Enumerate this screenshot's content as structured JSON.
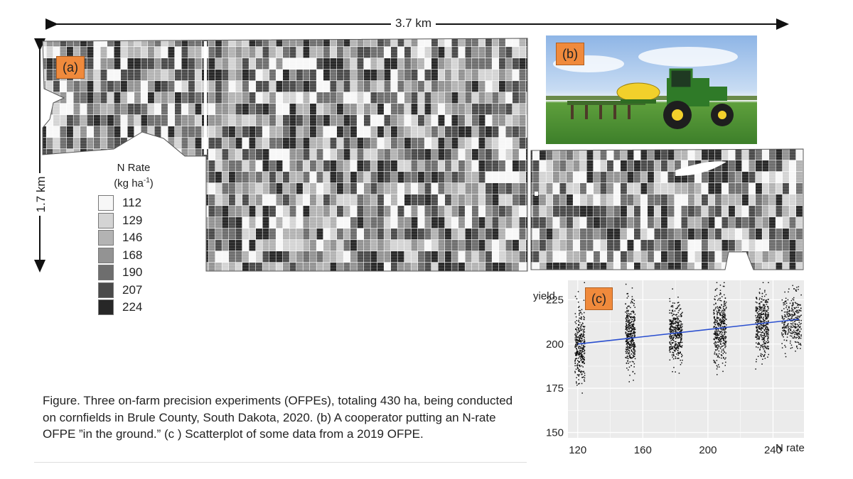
{
  "dimensions": {
    "width_label": "3.7 km",
    "height_label": "1.7 km"
  },
  "panels": {
    "a": "(a)",
    "b": "(b)",
    "c": "(c)"
  },
  "legend": {
    "title_line1": "N Rate",
    "title_line2_base": "(kg ha",
    "title_line2_sup": "-1",
    "title_line2_end": ")",
    "items": [
      {
        "value": "112",
        "color": "#f7f7f7"
      },
      {
        "value": "129",
        "color": "#d4d4d4"
      },
      {
        "value": "146",
        "color": "#b3b3b3"
      },
      {
        "value": "168",
        "color": "#939393"
      },
      {
        "value": "190",
        "color": "#6e6e6e"
      },
      {
        "value": "207",
        "color": "#4a4a4a"
      },
      {
        "value": "224",
        "color": "#272727"
      }
    ]
  },
  "caption": "Figure.  Three on-farm precision experiments (OFPEs), totaling 430 ha, being conducted on cornfields in Brule County, South Dakota, 2020. (b) A cooperator putting an N-rate OFPE ”in the ground.”  (c ) Scatterplot of some data from a 2019 OFPE.",
  "chart_data": {
    "type": "scatter",
    "ylabel": "yield",
    "xlabel": "N rate",
    "xlim": [
      114,
      259
    ],
    "ylim": [
      147,
      236
    ],
    "x_ticks": [
      120,
      160,
      200,
      240
    ],
    "y_ticks": [
      150,
      175,
      200,
      225
    ],
    "grid": true,
    "clusters": [
      {
        "x_center": 121,
        "x_spread": 3,
        "y_mean": 199,
        "y_sd": 10,
        "n": 330
      },
      {
        "x_center": 152,
        "x_spread": 3,
        "y_mean": 206,
        "y_sd": 9,
        "n": 380
      },
      {
        "x_center": 180,
        "x_spread": 4,
        "y_mean": 207,
        "y_sd": 8,
        "n": 380
      },
      {
        "x_center": 207,
        "x_spread": 4,
        "y_mean": 209,
        "y_sd": 10,
        "n": 380
      },
      {
        "x_center": 233,
        "x_spread": 4,
        "y_mean": 211,
        "y_sd": 9,
        "n": 380
      },
      {
        "x_center": 251,
        "x_spread": 6,
        "y_mean": 213,
        "y_sd": 8,
        "n": 300
      }
    ],
    "trend_line": {
      "x": [
        120,
        256
      ],
      "y": [
        200,
        214
      ],
      "color": "#2a4fd0"
    }
  }
}
